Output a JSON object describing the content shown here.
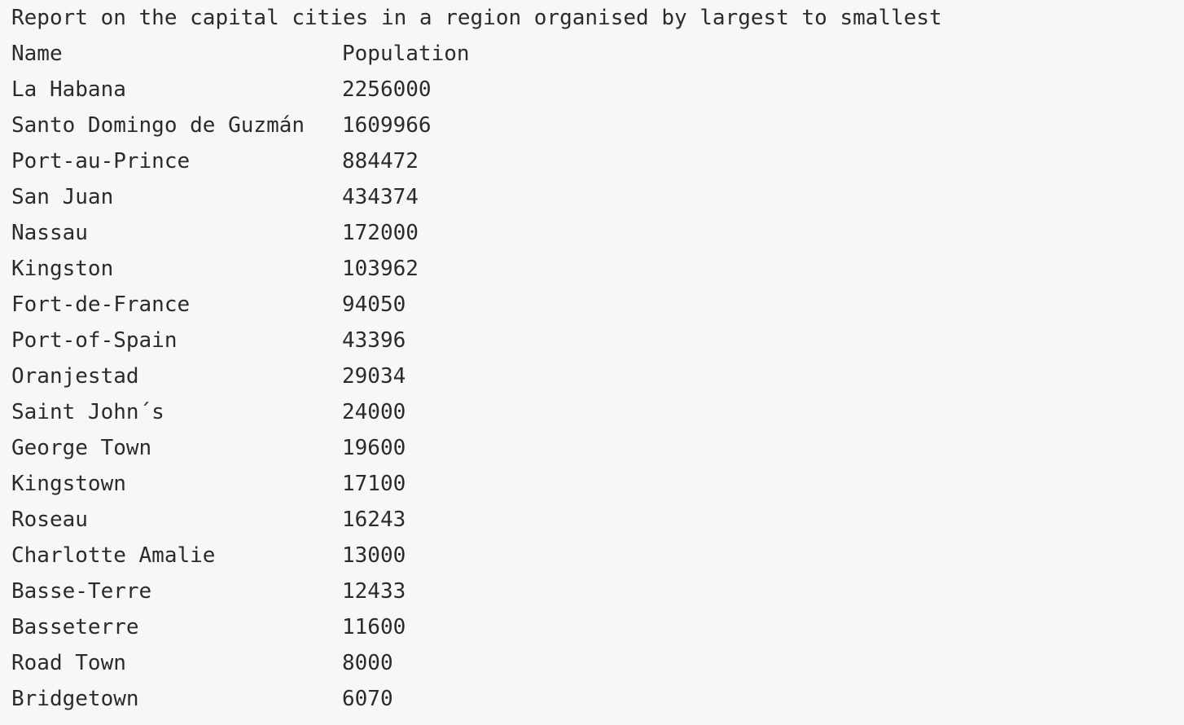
{
  "report": {
    "title": "Report on the capital cities in a region organised by largest to smallest",
    "headers": {
      "name": "Name",
      "population": "Population"
    },
    "rows": [
      {
        "name": "La Habana",
        "population": "2256000"
      },
      {
        "name": "Santo Domingo de Guzmán",
        "population": "1609966"
      },
      {
        "name": "Port-au-Prince",
        "population": "884472"
      },
      {
        "name": "San Juan",
        "population": "434374"
      },
      {
        "name": "Nassau",
        "population": "172000"
      },
      {
        "name": "Kingston",
        "population": "103962"
      },
      {
        "name": "Fort-de-France",
        "population": "94050"
      },
      {
        "name": "Port-of-Spain",
        "population": "43396"
      },
      {
        "name": "Oranjestad",
        "population": "29034"
      },
      {
        "name": "Saint John´s",
        "population": "24000"
      },
      {
        "name": "George Town",
        "population": "19600"
      },
      {
        "name": "Kingstown",
        "population": "17100"
      },
      {
        "name": "Roseau",
        "population": "16243"
      },
      {
        "name": "Charlotte Amalie",
        "population": "13000"
      },
      {
        "name": "Basse-Terre",
        "population": "12433"
      },
      {
        "name": "Basseterre",
        "population": "11600"
      },
      {
        "name": "Road Town",
        "population": "8000"
      },
      {
        "name": "Bridgetown",
        "population": "6070"
      }
    ]
  }
}
